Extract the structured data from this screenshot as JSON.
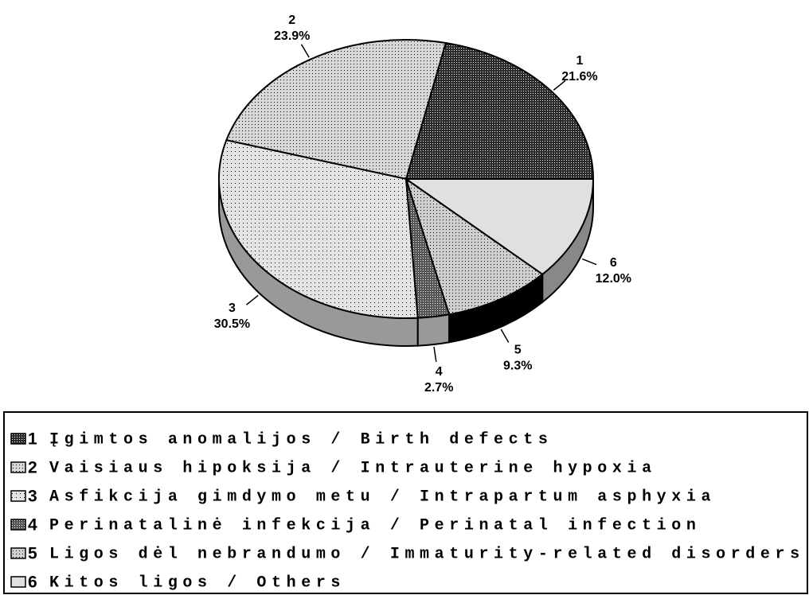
{
  "chart_data": {
    "type": "pie",
    "categories": [
      "1",
      "2",
      "3",
      "4",
      "5",
      "6"
    ],
    "values": [
      21.6,
      23.9,
      30.5,
      2.7,
      9.3,
      12.0
    ],
    "value_labels": [
      "21.6%",
      "23.9%",
      "30.5%",
      "2.7%",
      "9.3%",
      "12.0%"
    ],
    "descriptions": [
      "Įgimtos anomalijos / Birth defects",
      "Vaisiaus hipoksija / Intrauterine hypoxia",
      "Asfikcija gimdymo metu / Intrapartum asphyxia",
      "Perinatalinė infekcija / Perinatal infection",
      "Ligos dėl nebrandumo / Immaturity-related disorders",
      "Kitos ligos / Others"
    ],
    "colors": [
      "#2a2a2a",
      "#d8d8d8",
      "#e4e4e4",
      "#555555",
      "#cfcfcf",
      "#e0e0e0"
    ],
    "side_colors": [
      "#777777",
      "#999999",
      "#999999",
      "#999999",
      "#000000",
      "#888888"
    ]
  }
}
